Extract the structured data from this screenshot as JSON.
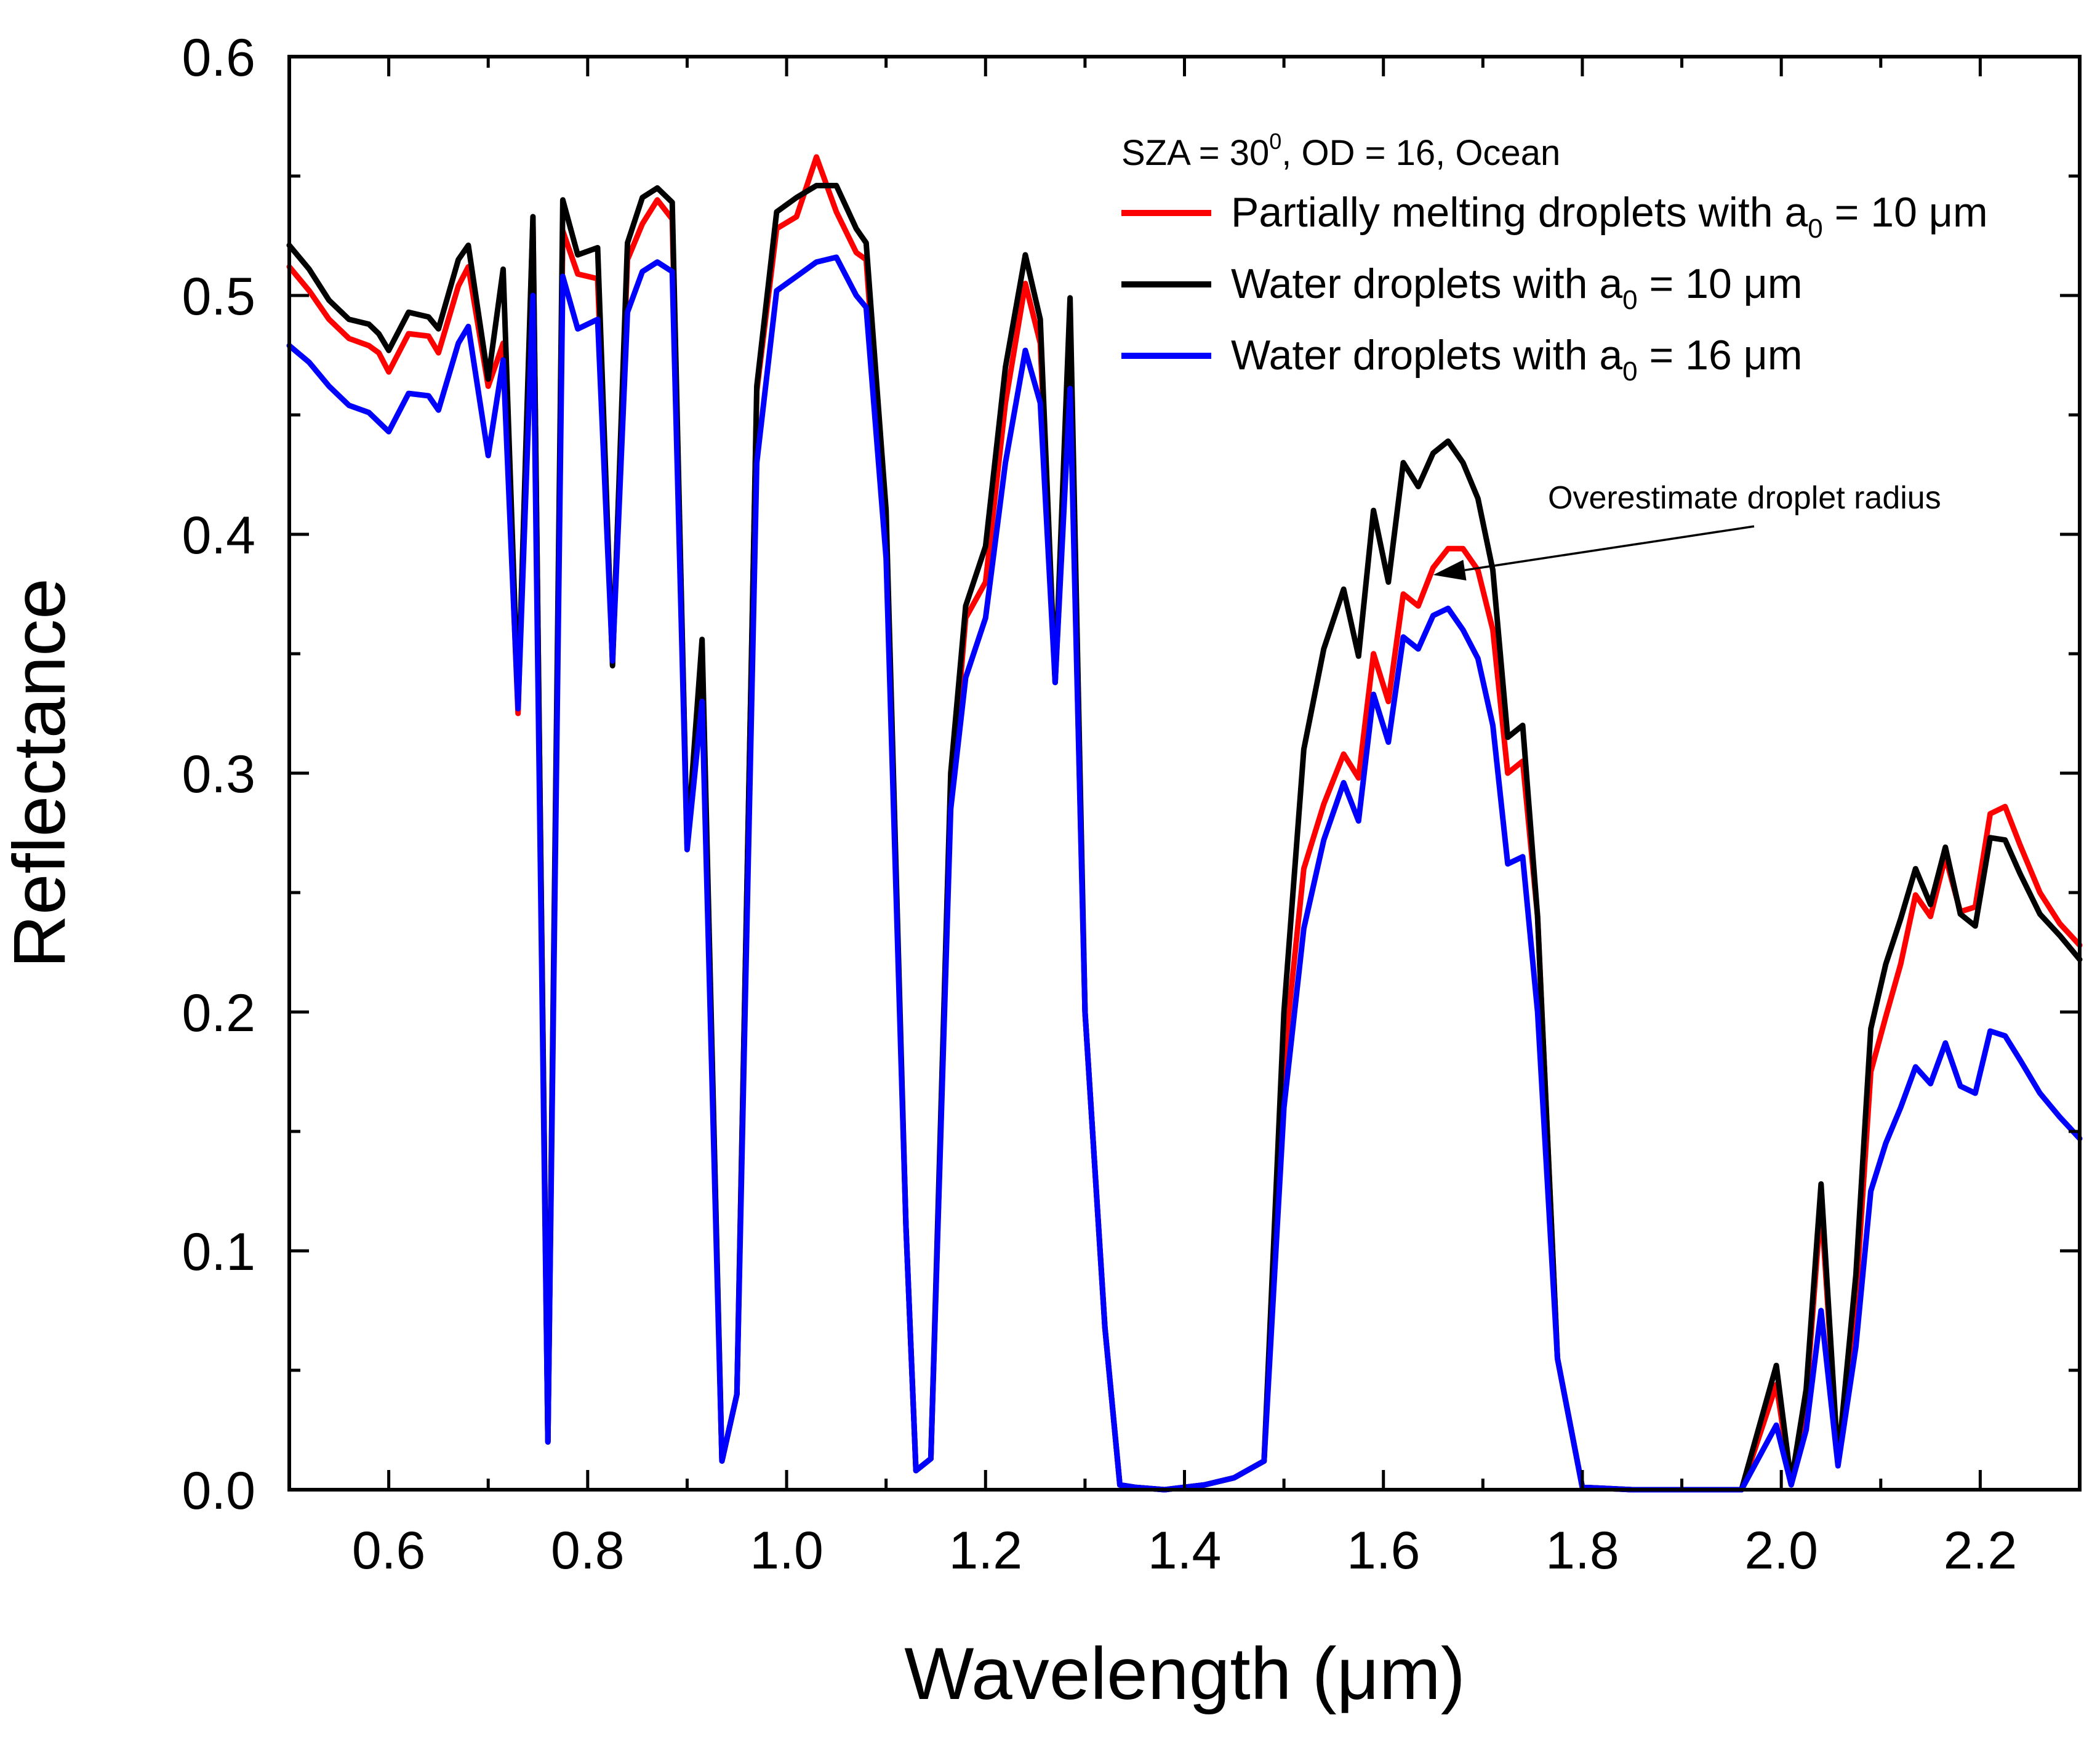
{
  "chart_data": {
    "type": "line",
    "xlabel": "Wavelength (μm)",
    "ylabel": "Reflectance",
    "xlim": [
      0.5,
      2.3
    ],
    "ylim": [
      0.0,
      0.6
    ],
    "x_ticks": [
      "0.6",
      "0.8",
      "1.0",
      "1.2",
      "1.4",
      "1.6",
      "1.8",
      "2.0",
      "2.2"
    ],
    "x_tick_values": [
      0.6,
      0.8,
      1.0,
      1.2,
      1.4,
      1.6,
      1.8,
      2.0,
      2.2
    ],
    "y_ticks": [
      "0.0",
      "0.1",
      "0.2",
      "0.3",
      "0.4",
      "0.5",
      "0.6"
    ],
    "y_tick_values": [
      0.0,
      0.1,
      0.2,
      0.3,
      0.4,
      0.5,
      0.6
    ],
    "legend_header": {
      "prefix": "SZA = 30",
      "superscript": "0",
      "suffix": ", OD = 16, Ocean"
    },
    "annotation": {
      "text": "Overestimate droplet radius",
      "target_x": 1.65,
      "target_y": 0.383
    },
    "series": [
      {
        "name_main": "Partially melting droplets with a",
        "name_sub": "0",
        "name_tail": " = 10 μm",
        "color": "#ff0000",
        "x": [
          0.5,
          0.52,
          0.54,
          0.56,
          0.58,
          0.59,
          0.6,
          0.62,
          0.64,
          0.65,
          0.67,
          0.68,
          0.7,
          0.715,
          0.73,
          0.745,
          0.76,
          0.775,
          0.79,
          0.81,
          0.825,
          0.84,
          0.855,
          0.87,
          0.885,
          0.9,
          0.915,
          0.935,
          0.95,
          0.97,
          0.99,
          1.01,
          1.03,
          1.05,
          1.07,
          1.08,
          1.1,
          1.12,
          1.13,
          1.145,
          1.165,
          1.18,
          1.2,
          1.22,
          1.24,
          1.255,
          1.27,
          1.285,
          1.3,
          1.32,
          1.335,
          1.35,
          1.38,
          1.42,
          1.45,
          1.48,
          1.5,
          1.52,
          1.54,
          1.56,
          1.575,
          1.59,
          1.605,
          1.62,
          1.635,
          1.65,
          1.665,
          1.68,
          1.695,
          1.71,
          1.725,
          1.74,
          1.755,
          1.775,
          1.8,
          1.85,
          1.9,
          1.96,
          1.995,
          2.01,
          2.025,
          2.04,
          2.057,
          2.075,
          2.09,
          2.105,
          2.12,
          2.135,
          2.15,
          2.165,
          2.18,
          2.195,
          2.21,
          2.225,
          2.24,
          2.26,
          2.28,
          2.3
        ],
        "y": [
          0.512,
          0.502,
          0.49,
          0.482,
          0.479,
          0.476,
          0.468,
          0.484,
          0.483,
          0.476,
          0.504,
          0.512,
          0.462,
          0.48,
          0.325,
          0.532,
          0.02,
          0.527,
          0.509,
          0.507,
          0.347,
          0.515,
          0.53,
          0.54,
          0.532,
          0.27,
          0.35,
          0.012,
          0.04,
          0.46,
          0.528,
          0.533,
          0.558,
          0.535,
          0.518,
          0.515,
          0.4,
          0.11,
          0.008,
          0.013,
          0.29,
          0.365,
          0.38,
          0.455,
          0.505,
          0.48,
          0.338,
          0.465,
          0.2,
          0.068,
          0.002,
          0.001,
          0.0,
          0.002,
          0.005,
          0.012,
          0.18,
          0.26,
          0.287,
          0.308,
          0.298,
          0.35,
          0.33,
          0.375,
          0.37,
          0.386,
          0.394,
          0.394,
          0.385,
          0.36,
          0.3,
          0.305,
          0.24,
          0.055,
          0.001,
          0.0,
          0.0,
          0.0,
          0.044,
          0.003,
          0.038,
          0.12,
          0.012,
          0.08,
          0.175,
          0.198,
          0.22,
          0.249,
          0.24,
          0.265,
          0.242,
          0.244,
          0.283,
          0.286,
          0.27,
          0.25,
          0.237,
          0.228
        ]
      },
      {
        "name_main": "Water droplets with a",
        "name_sub": "0",
        "name_tail": " = 10 μm",
        "color": "#000000",
        "x": [
          0.5,
          0.52,
          0.54,
          0.56,
          0.58,
          0.59,
          0.6,
          0.62,
          0.64,
          0.65,
          0.67,
          0.68,
          0.7,
          0.715,
          0.73,
          0.745,
          0.76,
          0.775,
          0.79,
          0.81,
          0.825,
          0.84,
          0.855,
          0.87,
          0.885,
          0.9,
          0.915,
          0.935,
          0.95,
          0.97,
          0.99,
          1.01,
          1.03,
          1.05,
          1.07,
          1.08,
          1.1,
          1.12,
          1.13,
          1.145,
          1.165,
          1.18,
          1.2,
          1.22,
          1.24,
          1.255,
          1.27,
          1.285,
          1.3,
          1.32,
          1.335,
          1.35,
          1.38,
          1.42,
          1.45,
          1.48,
          1.5,
          1.52,
          1.54,
          1.56,
          1.575,
          1.59,
          1.605,
          1.62,
          1.635,
          1.65,
          1.665,
          1.68,
          1.695,
          1.71,
          1.725,
          1.74,
          1.755,
          1.775,
          1.8,
          1.85,
          1.9,
          1.96,
          1.995,
          2.01,
          2.025,
          2.04,
          2.057,
          2.075,
          2.09,
          2.105,
          2.12,
          2.135,
          2.15,
          2.165,
          2.18,
          2.195,
          2.21,
          2.225,
          2.24,
          2.26,
          2.28,
          2.3
        ],
        "y": [
          0.521,
          0.511,
          0.498,
          0.49,
          0.488,
          0.484,
          0.477,
          0.493,
          0.491,
          0.486,
          0.515,
          0.521,
          0.465,
          0.511,
          0.33,
          0.533,
          0.02,
          0.54,
          0.517,
          0.52,
          0.345,
          0.522,
          0.541,
          0.545,
          0.539,
          0.27,
          0.356,
          0.012,
          0.04,
          0.462,
          0.535,
          0.541,
          0.546,
          0.546,
          0.528,
          0.522,
          0.41,
          0.11,
          0.008,
          0.013,
          0.3,
          0.37,
          0.395,
          0.47,
          0.517,
          0.49,
          0.338,
          0.499,
          0.2,
          0.068,
          0.002,
          0.001,
          0.0,
          0.002,
          0.005,
          0.012,
          0.2,
          0.31,
          0.352,
          0.377,
          0.349,
          0.41,
          0.38,
          0.43,
          0.42,
          0.434,
          0.439,
          0.43,
          0.415,
          0.385,
          0.315,
          0.32,
          0.24,
          0.055,
          0.001,
          0.0,
          0.0,
          0.0,
          0.052,
          0.003,
          0.042,
          0.128,
          0.012,
          0.09,
          0.193,
          0.22,
          0.239,
          0.26,
          0.245,
          0.269,
          0.241,
          0.236,
          0.273,
          0.272,
          0.258,
          0.241,
          0.232,
          0.222
        ]
      },
      {
        "name_main": "Water droplets with a",
        "name_sub": "0",
        "name_tail": " = 16 μm",
        "color": "#0000ff",
        "x": [
          0.5,
          0.52,
          0.54,
          0.56,
          0.58,
          0.59,
          0.6,
          0.62,
          0.64,
          0.65,
          0.67,
          0.68,
          0.7,
          0.715,
          0.73,
          0.745,
          0.76,
          0.775,
          0.79,
          0.81,
          0.825,
          0.84,
          0.855,
          0.87,
          0.885,
          0.9,
          0.915,
          0.935,
          0.95,
          0.97,
          0.99,
          1.01,
          1.03,
          1.05,
          1.07,
          1.08,
          1.1,
          1.12,
          1.13,
          1.145,
          1.165,
          1.18,
          1.2,
          1.22,
          1.24,
          1.255,
          1.27,
          1.285,
          1.3,
          1.32,
          1.335,
          1.35,
          1.38,
          1.42,
          1.45,
          1.48,
          1.5,
          1.52,
          1.54,
          1.56,
          1.575,
          1.59,
          1.605,
          1.62,
          1.635,
          1.65,
          1.665,
          1.68,
          1.695,
          1.71,
          1.725,
          1.74,
          1.755,
          1.775,
          1.8,
          1.85,
          1.9,
          1.96,
          1.995,
          2.01,
          2.025,
          2.04,
          2.057,
          2.075,
          2.09,
          2.105,
          2.12,
          2.135,
          2.15,
          2.165,
          2.18,
          2.195,
          2.21,
          2.225,
          2.24,
          2.26,
          2.28,
          2.3
        ],
        "y": [
          0.479,
          0.472,
          0.462,
          0.454,
          0.451,
          0.447,
          0.443,
          0.459,
          0.458,
          0.452,
          0.48,
          0.487,
          0.433,
          0.473,
          0.327,
          0.5,
          0.02,
          0.508,
          0.486,
          0.49,
          0.347,
          0.493,
          0.51,
          0.514,
          0.51,
          0.268,
          0.33,
          0.012,
          0.04,
          0.43,
          0.502,
          0.508,
          0.514,
          0.516,
          0.5,
          0.495,
          0.39,
          0.11,
          0.008,
          0.013,
          0.285,
          0.34,
          0.365,
          0.43,
          0.477,
          0.455,
          0.338,
          0.461,
          0.2,
          0.068,
          0.002,
          0.001,
          0.0,
          0.002,
          0.005,
          0.012,
          0.16,
          0.235,
          0.272,
          0.296,
          0.28,
          0.333,
          0.313,
          0.357,
          0.352,
          0.366,
          0.369,
          0.36,
          0.348,
          0.32,
          0.262,
          0.265,
          0.2,
          0.055,
          0.001,
          0.0,
          0.0,
          0.0,
          0.027,
          0.002,
          0.025,
          0.075,
          0.01,
          0.06,
          0.125,
          0.145,
          0.16,
          0.177,
          0.17,
          0.187,
          0.169,
          0.166,
          0.192,
          0.19,
          0.18,
          0.166,
          0.156,
          0.147
        ]
      }
    ]
  }
}
